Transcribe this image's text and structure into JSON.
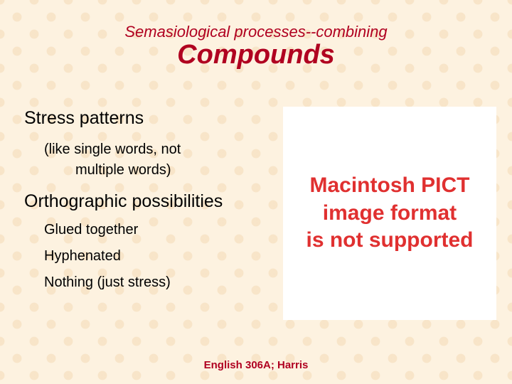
{
  "colors": {
    "background": "#fdf2e0",
    "accent": "#b00020",
    "pict_bg": "#ffffff",
    "pict_text": "#e03030",
    "body_text": "#000000"
  },
  "header": {
    "subtitle": "Semasiological processes--combining",
    "title": "Compounds"
  },
  "content": {
    "section1": {
      "heading": "Stress patterns",
      "line1": "(like single words, not",
      "line2": "multiple words)"
    },
    "section2": {
      "heading": "Orthographic possibilities",
      "items": [
        "Glued together",
        "Hyphenated",
        "Nothing (just stress)"
      ]
    }
  },
  "pict_placeholder": {
    "line1": "Macintosh PICT",
    "line2": "image format",
    "line3": "is not supported"
  },
  "footer": "English 306A; Harris"
}
